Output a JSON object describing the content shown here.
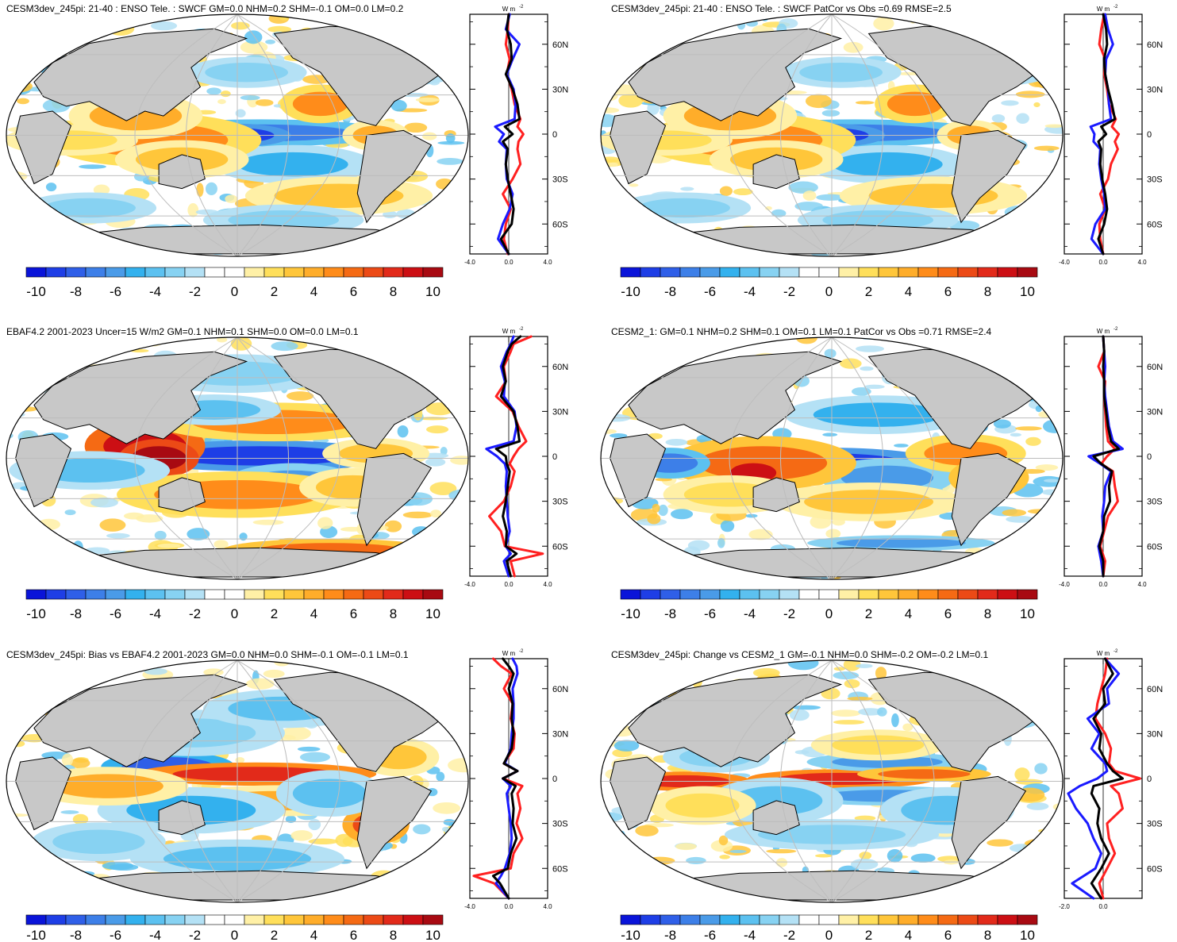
{
  "colorbar": {
    "labels": [
      "-10",
      "-8",
      "-6",
      "-4",
      "-2",
      "0",
      "2",
      "4",
      "6",
      "8",
      "10"
    ],
    "colors": [
      "#0a14d9",
      "#1e3ee6",
      "#2f5fe8",
      "#3d7fe8",
      "#4a9be8",
      "#33b1ee",
      "#5cc1f0",
      "#87d2f2",
      "#b4e1f5",
      "#ffffff",
      "#ffffff",
      "#fff0a6",
      "#ffdf5a",
      "#ffc63a",
      "#ffad2a",
      "#ff8c1a",
      "#f56a14",
      "#ec4a16",
      "#e22a1a",
      "#cc0f14",
      "#a80a12"
    ]
  },
  "zonal_axis": {
    "units": "W m",
    "units_exp": "-2",
    "lat_labels": [
      "60N",
      "30N",
      "0",
      "30S",
      "60S"
    ]
  },
  "chart_data": [
    {
      "type": "heatmap",
      "panel": "model_enso",
      "title": "CESM3dev_245pi: 21-40 : ENSO Tele. : SWCF GM=0.0 NHM=0.2 SHM=-0.1 OM=0.0 LM=0.2",
      "colorbar_labels": [
        "-10",
        "-8",
        "-6",
        "-4",
        "-2",
        "0",
        "2",
        "4",
        "6",
        "8",
        "10"
      ],
      "zonal_xlim": [
        -4,
        4
      ],
      "zonal_xticks": [
        "-4.0",
        "0.0",
        "4.0"
      ],
      "zonal_ylim": [
        -80,
        80
      ],
      "zonal_series": [
        {
          "color": "#ff2020",
          "lat": [
            80,
            70,
            60,
            50,
            40,
            30,
            20,
            10,
            5,
            0,
            -5,
            -10,
            -20,
            -30,
            -40,
            -50,
            -60,
            -70,
            -80
          ],
          "values": [
            0,
            -0.1,
            -0.3,
            0.1,
            -0.2,
            0.3,
            0.6,
            1.2,
            0.9,
            1.5,
            1.0,
            0.9,
            1.2,
            0.4,
            -0.6,
            0.2,
            -0.3,
            -0.5,
            -0.1
          ]
        },
        {
          "color": "#1a1aff",
          "lat": [
            80,
            70,
            60,
            50,
            40,
            30,
            20,
            10,
            5,
            0,
            -5,
            -10,
            -20,
            -30,
            -40,
            -50,
            -60,
            -70,
            -80
          ],
          "values": [
            0.1,
            -0.3,
            1.1,
            0.4,
            -0.2,
            0.5,
            0.7,
            0.6,
            -1.4,
            -0.5,
            -1.0,
            -0.2,
            -0.3,
            -0.2,
            0.4,
            0.1,
            -0.6,
            -1.1,
            0
          ]
        },
        {
          "color": "#000000",
          "lat": [
            80,
            70,
            60,
            50,
            40,
            30,
            20,
            10,
            5,
            0,
            -5,
            -10,
            -20,
            -30,
            -40,
            -50,
            -60,
            -70,
            -80
          ],
          "values": [
            0,
            -0.2,
            0.2,
            0.3,
            -0.3,
            0.4,
            0.9,
            1.1,
            -0.4,
            0.4,
            -0.6,
            -0.1,
            -0.3,
            -0.1,
            0.2,
            0.5,
            0.3,
            -0.8,
            0
          ]
        }
      ]
    },
    {
      "type": "heatmap",
      "panel": "model_patcor",
      "title": "CESM3dev_245pi: 21-40 : ENSO Tele. : SWCF PatCor vs Obs =0.69 RMSE=2.5",
      "colorbar_labels": [
        "-10",
        "-8",
        "-6",
        "-4",
        "-2",
        "0",
        "2",
        "4",
        "6",
        "8",
        "10"
      ],
      "zonal_xlim": [
        -4,
        4
      ],
      "zonal_xticks": [
        "-4.0",
        "0.0",
        "4.0"
      ],
      "zonal_ylim": [
        -80,
        80
      ],
      "zonal_series": [
        {
          "color": "#ff2020",
          "lat": [
            80,
            70,
            60,
            50,
            40,
            30,
            20,
            10,
            5,
            0,
            -5,
            -10,
            -20,
            -30,
            -40,
            -50,
            -60,
            -70,
            -80
          ],
          "values": [
            0.1,
            -0.2,
            -0.4,
            0.2,
            0.1,
            0.4,
            0.6,
            1.3,
            0.9,
            1.6,
            1.2,
            1.5,
            0.8,
            0.5,
            -0.3,
            0.2,
            -0.4,
            -0.3,
            0
          ]
        },
        {
          "color": "#1a1aff",
          "lat": [
            80,
            70,
            60,
            50,
            40,
            30,
            20,
            10,
            5,
            0,
            -5,
            -10,
            -20,
            -30,
            -40,
            -50,
            -60,
            -70,
            -80
          ],
          "values": [
            0.2,
            0.5,
            1.0,
            0.3,
            0.2,
            0.5,
            0.6,
            0.8,
            -1.3,
            -0.9,
            -1.0,
            -0.3,
            -0.4,
            -0.2,
            0.1,
            0.2,
            -0.8,
            -1.2,
            0
          ]
        },
        {
          "color": "#000000",
          "lat": [
            80,
            70,
            60,
            50,
            40,
            30,
            20,
            10,
            5,
            0,
            -5,
            -10,
            -20,
            -30,
            -40,
            -50,
            -60,
            -70,
            -80
          ],
          "values": [
            0,
            0.3,
            0.4,
            0.1,
            0.2,
            0.5,
            0.9,
            1.2,
            -0.2,
            0.3,
            -0.5,
            -0.2,
            -0.3,
            -0.1,
            0.2,
            0.4,
            0.1,
            -0.5,
            0
          ]
        }
      ]
    },
    {
      "type": "heatmap",
      "panel": "obs",
      "title": "EBAF4.2 2001-2023 Uncer=15 W/m2 GM=0.1 NHM=0.1 SHM=0.0 OM=0.0 LM=0.1",
      "colorbar_labels": [
        "-10",
        "-8",
        "-6",
        "-4",
        "-2",
        "0",
        "2",
        "4",
        "6",
        "8",
        "10"
      ],
      "zonal_xlim": [
        -4,
        4
      ],
      "zonal_xticks": [
        "-4.0",
        "0.0",
        "4.0"
      ],
      "zonal_ylim": [
        -80,
        80
      ],
      "zonal_series": [
        {
          "color": "#ff2020",
          "lat": [
            80,
            75,
            70,
            60,
            50,
            40,
            30,
            20,
            10,
            5,
            0,
            -5,
            -10,
            -20,
            -30,
            -40,
            -50,
            -60,
            -65,
            -70,
            -80
          ],
          "values": [
            2.3,
            0.5,
            0.2,
            -0.5,
            -0.3,
            -1.3,
            0.4,
            1.0,
            1.8,
            1.0,
            0.5,
            0.1,
            0.6,
            0.2,
            -0.5,
            -2.0,
            -0.8,
            -0.4,
            3.5,
            0.2,
            0.6
          ]
        },
        {
          "color": "#1a1aff",
          "lat": [
            80,
            75,
            70,
            60,
            50,
            40,
            30,
            20,
            10,
            5,
            0,
            -5,
            -10,
            -20,
            -30,
            -40,
            -50,
            -60,
            -65,
            -70,
            -80
          ],
          "values": [
            0.5,
            0.2,
            -0.2,
            -0.8,
            -0.4,
            -0.5,
            0.6,
            0.8,
            0.5,
            -2.3,
            -1.2,
            -0.4,
            -0.2,
            -0.3,
            -0.2,
            -0.1,
            0.1,
            -0.3,
            0.2,
            -0.5,
            0
          ]
        },
        {
          "color": "#000000",
          "lat": [
            80,
            75,
            70,
            60,
            50,
            40,
            30,
            20,
            10,
            5,
            0,
            -5,
            -10,
            -20,
            -30,
            -40,
            -50,
            -60,
            -65,
            -70,
            -80
          ],
          "values": [
            1.2,
            0.3,
            -0.1,
            -0.6,
            -0.3,
            -0.8,
            0.5,
            0.9,
            1.1,
            -1.3,
            -0.3,
            -0.2,
            0.1,
            -0.1,
            -0.3,
            -0.6,
            -0.2,
            -0.3,
            0.8,
            -0.2,
            0.2
          ]
        }
      ]
    },
    {
      "type": "heatmap",
      "panel": "cesm2",
      "title": "CESM2_1: GM=0.1 NHM=0.2 SHM=0.1 OM=0.1 LM=0.1 PatCor vs Obs =0.71 RMSE=2.4",
      "colorbar_labels": [
        "-10",
        "-8",
        "-6",
        "-4",
        "-2",
        "0",
        "2",
        "4",
        "6",
        "8",
        "10"
      ],
      "zonal_xlim": [
        -4,
        4
      ],
      "zonal_xticks": [
        "-4.0",
        "0.0",
        "4.0"
      ],
      "zonal_ylim": [
        -80,
        80
      ],
      "zonal_series": [
        {
          "color": "#ff2020",
          "lat": [
            80,
            70,
            60,
            50,
            40,
            30,
            20,
            10,
            5,
            0,
            -5,
            -10,
            -20,
            -30,
            -40,
            -50,
            -60,
            -70,
            -80
          ],
          "values": [
            0,
            0.1,
            -0.5,
            0.2,
            0.1,
            0.2,
            0.3,
            0.5,
            1.2,
            0.4,
            -0.2,
            1.0,
            1.2,
            1.5,
            0.5,
            0.1,
            -0.3,
            0.2,
            0
          ]
        },
        {
          "color": "#1a1aff",
          "lat": [
            80,
            70,
            60,
            50,
            40,
            30,
            20,
            10,
            5,
            0,
            -5,
            -10,
            -20,
            -30,
            -40,
            -50,
            -60,
            -70,
            -80
          ],
          "values": [
            0,
            0.1,
            0.2,
            0.1,
            0.2,
            0.4,
            0.6,
            1.0,
            2.0,
            -1.5,
            -0.3,
            0.8,
            0.2,
            0.1,
            -0.1,
            0,
            -0.5,
            -0.2,
            0
          ]
        },
        {
          "color": "#000000",
          "lat": [
            80,
            70,
            60,
            50,
            40,
            30,
            20,
            10,
            5,
            0,
            -5,
            -10,
            -20,
            -30,
            -40,
            -50,
            -60,
            -70,
            -80
          ],
          "values": [
            0,
            0.1,
            0,
            0.1,
            0.1,
            0.3,
            0.5,
            0.8,
            1.6,
            -1.0,
            -0.2,
            0.9,
            0.6,
            0.7,
            0.1,
            0,
            -0.4,
            0,
            0
          ]
        }
      ]
    },
    {
      "type": "heatmap",
      "panel": "bias",
      "title": "CESM3dev_245pi: Bias vs EBAF4.2 2001-2023 GM=0.0 NHM=0.0 SHM=-0.1 OM=-0.1 LM=0.1",
      "colorbar_labels": [
        "-10",
        "-8",
        "-6",
        "-4",
        "-2",
        "0",
        "2",
        "4",
        "6",
        "8",
        "10"
      ],
      "zonal_xlim": [
        -4,
        4
      ],
      "zonal_xticks": [
        "-4.0",
        "0.0",
        "4.0"
      ],
      "zonal_ylim": [
        -80,
        80
      ],
      "zonal_series": [
        {
          "color": "#ff2020",
          "lat": [
            80,
            75,
            70,
            60,
            50,
            40,
            30,
            20,
            10,
            5,
            0,
            -5,
            -10,
            -20,
            -30,
            -40,
            -50,
            -60,
            -65,
            -70,
            -80
          ],
          "values": [
            -1.6,
            -0.8,
            0.3,
            -0.5,
            0.4,
            0.2,
            0.6,
            0.5,
            -0.5,
            0.9,
            -0.6,
            1.4,
            0.9,
            1.2,
            0.8,
            1.4,
            0.5,
            0.2,
            -3.6,
            -1.5,
            0
          ]
        },
        {
          "color": "#1a1aff",
          "lat": [
            80,
            75,
            70,
            60,
            50,
            40,
            30,
            20,
            10,
            5,
            0,
            -5,
            -10,
            -20,
            -30,
            -40,
            -50,
            -60,
            -65,
            -70,
            -80
          ],
          "values": [
            0.4,
            0.8,
            0.9,
            0.4,
            0.5,
            0.5,
            0.3,
            0.2,
            -0.4,
            0.9,
            -0.6,
            0.2,
            -0.2,
            0,
            0.2,
            0.3,
            0.1,
            -0.4,
            -0.8,
            -1.3,
            0
          ]
        },
        {
          "color": "#000000",
          "lat": [
            80,
            75,
            70,
            60,
            50,
            40,
            30,
            20,
            10,
            5,
            0,
            -5,
            -10,
            -20,
            -30,
            -40,
            -50,
            -60,
            -65,
            -70,
            -80
          ],
          "values": [
            -0.6,
            0,
            0.5,
            0,
            0.4,
            0.3,
            0.5,
            0.3,
            -0.5,
            0.9,
            -0.6,
            0.7,
            0.3,
            0.5,
            0.4,
            0.8,
            0.2,
            -0.1,
            -1.6,
            -0.9,
            0
          ]
        }
      ]
    },
    {
      "type": "heatmap",
      "panel": "change",
      "title": "CESM3dev_245pi: Change vs CESM2_1 GM=-0.1 NHM=0.0 SHM=-0.2 OM=-0.2 LM=0.1",
      "colorbar_labels": [
        "-10",
        "-8",
        "-6",
        "-4",
        "-2",
        "0",
        "2",
        "4",
        "6",
        "8",
        "10"
      ],
      "zonal_xlim": [
        -2,
        2
      ],
      "zonal_xticks": [
        "-2.0",
        "0.0"
      ],
      "zonal_ylim": [
        -80,
        80
      ],
      "zonal_series": [
        {
          "color": "#ff2020",
          "lat": [
            80,
            70,
            60,
            50,
            40,
            30,
            20,
            10,
            5,
            0,
            -5,
            -10,
            -20,
            -30,
            -40,
            -50,
            -60,
            -70,
            -80
          ],
          "values": [
            0.2,
            0.1,
            -0.1,
            -0.3,
            -0.4,
            0.1,
            0.4,
            0.3,
            0.6,
            1.9,
            0.4,
            0.8,
            1.0,
            0.2,
            0.3,
            0.6,
            0.2,
            -0.2,
            0
          ]
        },
        {
          "color": "#1a1aff",
          "lat": [
            80,
            70,
            60,
            50,
            40,
            30,
            20,
            10,
            5,
            0,
            -5,
            -10,
            -20,
            -30,
            -40,
            -50,
            -60,
            -70,
            -80
          ],
          "values": [
            0.1,
            0.8,
            0.2,
            0.3,
            -0.8,
            -0.2,
            -0.6,
            0.1,
            0.2,
            -0.3,
            -1.2,
            -1.8,
            -1.4,
            -0.8,
            -0.5,
            -0.1,
            -0.4,
            -1.6,
            -0.5
          ]
        },
        {
          "color": "#000000",
          "lat": [
            80,
            70,
            60,
            50,
            40,
            30,
            20,
            10,
            5,
            0,
            -5,
            -10,
            -20,
            -30,
            -40,
            -50,
            -60,
            -70,
            -80
          ],
          "values": [
            0.1,
            0.5,
            0,
            0.1,
            -0.5,
            -0.1,
            -0.2,
            0.2,
            0.5,
            1.0,
            -0.5,
            -0.6,
            -0.2,
            -0.3,
            -0.1,
            0.3,
            -0.1,
            -0.6,
            -0.1
          ]
        }
      ]
    }
  ]
}
